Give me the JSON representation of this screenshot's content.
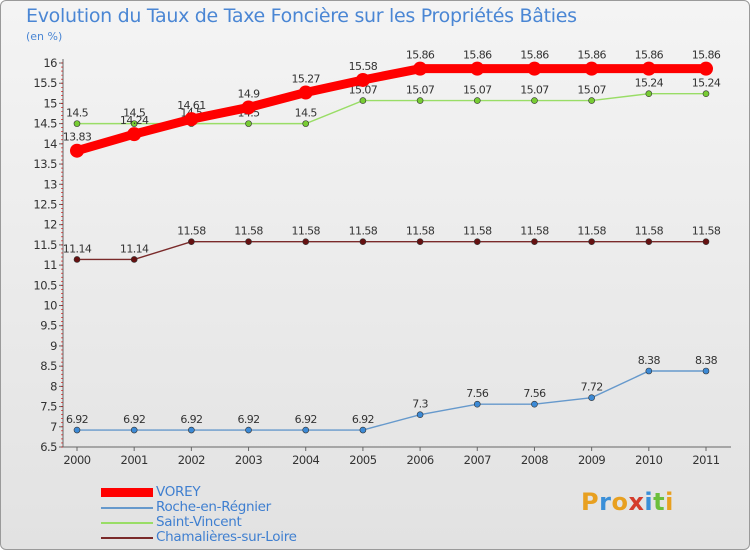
{
  "chart_data": {
    "type": "line",
    "title": "Evolution du Taux de Taxe Foncière sur les Propriétés Bâties",
    "unit_label": "(en %)",
    "categories": [
      "2000",
      "2001",
      "2002",
      "2003",
      "2004",
      "2005",
      "2006",
      "2007",
      "2008",
      "2009",
      "2010",
      "2011"
    ],
    "ylim": [
      6.5,
      16
    ],
    "yticks": [
      "6.5",
      "7",
      "7.5",
      "8",
      "8.5",
      "9",
      "9.5",
      "10",
      "10.5",
      "11",
      "11.5",
      "12",
      "12.5",
      "13",
      "13.5",
      "14",
      "14.5",
      "15",
      "15.5",
      "16"
    ],
    "grid": false,
    "legend_position": "bottom-left",
    "series": [
      {
        "name": "VOREY",
        "color": "#ff0000",
        "emphasis": true,
        "values": [
          13.83,
          14.24,
          14.61,
          14.9,
          15.27,
          15.58,
          15.86,
          15.86,
          15.86,
          15.86,
          15.86,
          15.86
        ],
        "labels": [
          "13.83",
          "14.24",
          "14.61",
          "14.9",
          "15.27",
          "15.58",
          "15.86",
          "15.86",
          "15.86",
          "15.86",
          "15.86",
          "15.86"
        ]
      },
      {
        "name": "Roche-en-Régnier",
        "color": "#6699cc",
        "marker": "#3c8ad6",
        "values": [
          6.92,
          6.92,
          6.92,
          6.92,
          6.92,
          6.92,
          7.3,
          7.56,
          7.56,
          7.72,
          8.38,
          8.38
        ],
        "labels": [
          "6.92",
          "6.92",
          "6.92",
          "6.92",
          "6.92",
          "6.92",
          "7.3",
          "7.56",
          "7.56",
          "7.72",
          "8.38",
          "8.38"
        ]
      },
      {
        "name": "Saint-Vincent",
        "color": "#99dd66",
        "marker": "#77cc33",
        "values": [
          14.5,
          14.5,
          14.5,
          14.5,
          14.5,
          15.07,
          15.07,
          15.07,
          15.07,
          15.07,
          15.24,
          15.24
        ],
        "labels": [
          "14.5",
          "14.5",
          "14.5",
          "14.5",
          "14.5",
          "15.07",
          "15.07",
          "15.07",
          "15.07",
          "15.07",
          "15.24",
          "15.24"
        ]
      },
      {
        "name": "Chamalières-sur-Loire",
        "color": "#7a2a2a",
        "marker": "#661111",
        "values": [
          11.14,
          11.14,
          11.58,
          11.58,
          11.58,
          11.58,
          11.58,
          11.58,
          11.58,
          11.58,
          11.58,
          11.58
        ],
        "labels": [
          "11.14",
          "11.14",
          "11.58",
          "11.58",
          "11.58",
          "11.58",
          "11.58",
          "11.58",
          "11.58",
          "11.58",
          "11.58",
          "11.58"
        ]
      }
    ]
  },
  "logo": {
    "text": "Proxiti",
    "letter_colors": [
      "#e8a020",
      "#3a8fd8",
      "#e8a020",
      "#d43c2c",
      "#3a8fd8",
      "#6cbf3c",
      "#e8a020"
    ]
  }
}
